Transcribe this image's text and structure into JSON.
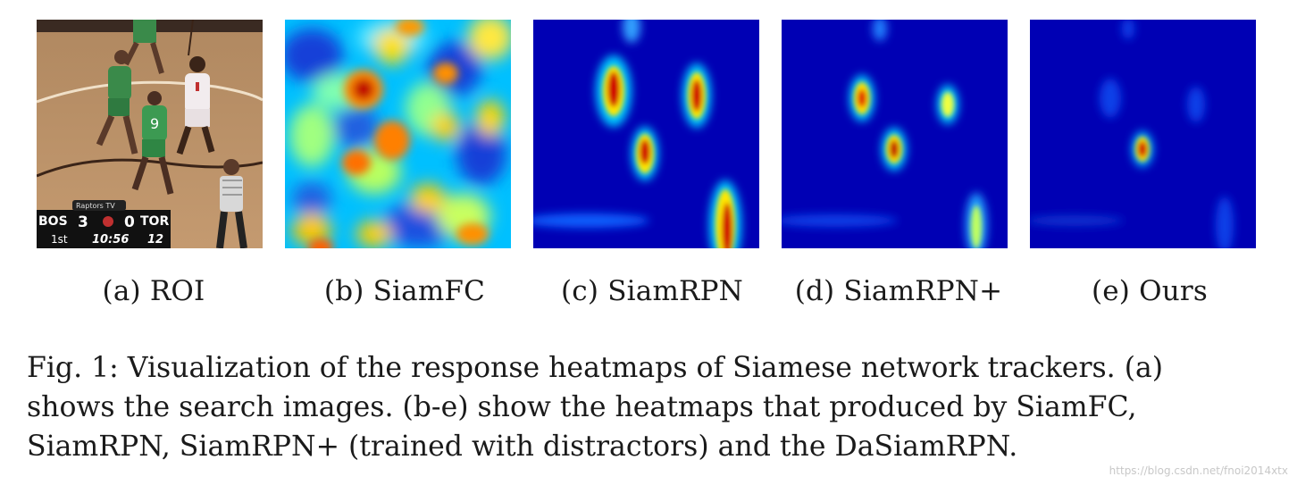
{
  "figure": {
    "panels": [
      {
        "key": "roi",
        "label": "(a) ROI",
        "scoreboard": {
          "network": "Raptors TV",
          "team_left": "BOS",
          "score_left": "3",
          "score_right": "0",
          "team_right": "TOR",
          "period": "1st",
          "clock": "10:56",
          "shot_clock": "12"
        }
      },
      {
        "key": "siamfc",
        "label": "(b) SiamFC"
      },
      {
        "key": "siamrpn",
        "label": "(c) SiamRPN"
      },
      {
        "key": "siamrpnplus",
        "label": "(d) SiamRPN+"
      },
      {
        "key": "ours",
        "label": "(e) Ours"
      }
    ],
    "caption": {
      "line1": "Fig. 1: Visualization of the response heatmaps of Siamese network trackers. (a)",
      "line2": "shows the search images. (b-e) show the heatmaps that produced by SiamFC,",
      "line3": "SiamRPN, SiamRPN+ (trained with distractors) and the DaSiamRPN."
    },
    "watermark": "https://blog.csdn.net/fnoi2014xtx",
    "colormap": {
      "low": "#0000a8",
      "mid": "#00c8ff",
      "high": "#ffe800",
      "peak": "#b00000"
    }
  }
}
